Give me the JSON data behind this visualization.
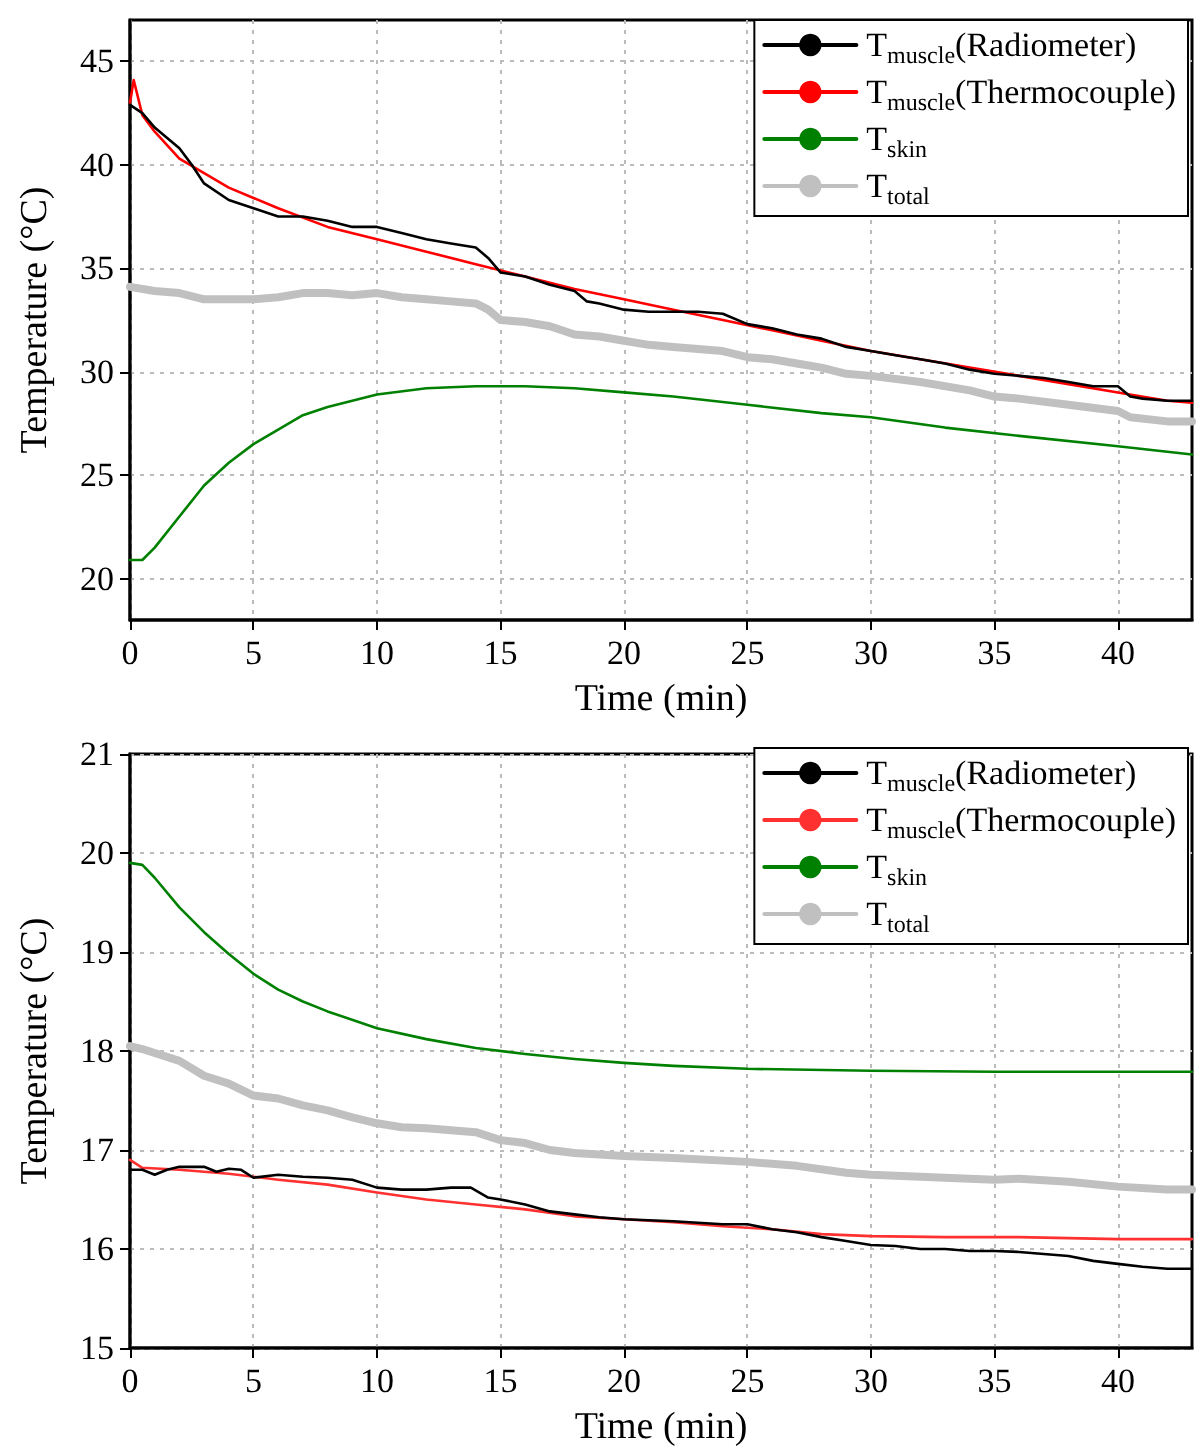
{
  "chart_data": [
    {
      "type": "line",
      "xlabel": "Time (min)",
      "ylabel": "Temperature (°C)",
      "xlim": [
        0,
        43
      ],
      "xticks": [
        0,
        5,
        10,
        15,
        20,
        25,
        30,
        35,
        40
      ],
      "ylim": [
        18,
        47
      ],
      "yticks": [
        20,
        25,
        30,
        35,
        40,
        45
      ],
      "grid": true,
      "legend": "top right",
      "marker": "none",
      "line_style": "solid",
      "series": [
        {
          "name": "T$_{muscle}$(Radiometer)",
          "color": "#000000",
          "x": [
            0,
            0.5,
            1,
            2,
            2.5,
            3,
            4,
            5,
            6,
            7,
            8,
            9,
            10,
            11,
            12,
            13,
            14,
            14.5,
            15,
            16,
            17,
            18,
            18.5,
            19,
            20,
            21,
            22,
            23,
            24,
            25,
            26,
            27,
            28,
            29,
            30,
            31,
            32,
            33,
            34,
            35,
            36,
            37,
            38,
            39,
            40,
            40.5,
            41,
            42,
            43
          ],
          "values": [
            42.9,
            42.5,
            41.8,
            40.8,
            40,
            39.1,
            38.3,
            37.9,
            37.5,
            37.5,
            37.3,
            37,
            37,
            36.7,
            36.4,
            36.2,
            36,
            35.5,
            34.8,
            34.6,
            34.2,
            33.9,
            33.4,
            33.3,
            33,
            32.9,
            32.9,
            32.9,
            32.8,
            32.3,
            32.1,
            31.8,
            31.6,
            31.2,
            31,
            30.8,
            30.6,
            30.4,
            30.1,
            29.9,
            29.8,
            29.7,
            29.5,
            29.3,
            29.3,
            28.8,
            28.7,
            28.6,
            28.6
          ]
        },
        {
          "name": "T$_{muscle}$(Thermocouple)",
          "color": "#ff0000",
          "x": [
            0,
            0.15,
            0.5,
            1,
            2,
            3,
            4,
            5,
            6,
            8,
            10,
            12,
            14,
            16,
            18,
            20,
            22,
            24,
            26,
            28,
            30,
            32,
            34,
            36,
            38,
            40,
            42,
            43
          ],
          "values": [
            43,
            44.1,
            42.4,
            41.6,
            40.3,
            39.6,
            38.9,
            38.4,
            37.9,
            37,
            36.4,
            35.8,
            35.2,
            34.6,
            34,
            33.5,
            33,
            32.5,
            32,
            31.5,
            31,
            30.6,
            30.2,
            29.8,
            29.4,
            29,
            28.6,
            28.5
          ]
        },
        {
          "name": "T$_{skin}$",
          "color": "#008000",
          "x": [
            0,
            0.5,
            1,
            2,
            3,
            4,
            5,
            6,
            7,
            8,
            10,
            12,
            14,
            16,
            18,
            20,
            22,
            25,
            28,
            30,
            33,
            36,
            40,
            43
          ],
          "values": [
            20.9,
            20.9,
            21.5,
            23,
            24.5,
            25.6,
            26.5,
            27.2,
            27.9,
            28.3,
            28.9,
            29.2,
            29.3,
            29.3,
            29.2,
            29,
            28.8,
            28.4,
            28,
            27.8,
            27.3,
            26.9,
            26.4,
            26
          ]
        },
        {
          "name": "T$_{total}$",
          "color": "#c0c0c0",
          "x": [
            0,
            1,
            2,
            3,
            4,
            5,
            6,
            7,
            8,
            9,
            10,
            11,
            12,
            13,
            14,
            14.5,
            15,
            16,
            17,
            18,
            19,
            20,
            21,
            22,
            23,
            24,
            25,
            26,
            27,
            28,
            29,
            30,
            32,
            34,
            35,
            36,
            38,
            40,
            40.5,
            42,
            43
          ],
          "values": [
            34.1,
            33.9,
            33.8,
            33.5,
            33.5,
            33.5,
            33.6,
            33.8,
            33.8,
            33.7,
            33.8,
            33.6,
            33.5,
            33.4,
            33.3,
            33,
            32.5,
            32.4,
            32.2,
            31.8,
            31.7,
            31.5,
            31.3,
            31.2,
            31.1,
            31,
            30.7,
            30.6,
            30.4,
            30.2,
            29.9,
            29.8,
            29.5,
            29.1,
            28.8,
            28.7,
            28.4,
            28.1,
            27.8,
            27.6,
            27.6
          ]
        }
      ]
    },
    {
      "type": "line",
      "xlabel": "Time (min)",
      "ylabel": "Temperature (°C)",
      "xlim": [
        0,
        43
      ],
      "xticks": [
        0,
        5,
        10,
        15,
        20,
        25,
        30,
        35,
        40
      ],
      "ylim": [
        15,
        21
      ],
      "yticks": [
        15,
        16,
        17,
        18,
        19,
        20,
        21
      ],
      "grid": true,
      "legend": "top right",
      "marker": "none",
      "line_style": "solid",
      "series": [
        {
          "name": "T$_{muscle}$(Radiometer)",
          "color": "#000000",
          "x": [
            0,
            0.5,
            1,
            1.5,
            2,
            3,
            3.5,
            4,
            4.5,
            5,
            6,
            7,
            8,
            9,
            10,
            11,
            12,
            13,
            13.8,
            14.5,
            15,
            16,
            17,
            18,
            19,
            20,
            22,
            24,
            25,
            26,
            27,
            28,
            29,
            30,
            31,
            32,
            33,
            34,
            35,
            36,
            37,
            38,
            39,
            40,
            41,
            42,
            43
          ],
          "values": [
            16.8,
            16.8,
            16.75,
            16.8,
            16.83,
            16.83,
            16.78,
            16.81,
            16.8,
            16.72,
            16.75,
            16.73,
            16.72,
            16.7,
            16.62,
            16.6,
            16.6,
            16.62,
            16.62,
            16.52,
            16.5,
            16.45,
            16.38,
            16.35,
            16.32,
            16.3,
            16.28,
            16.25,
            16.25,
            16.2,
            16.17,
            16.12,
            16.08,
            16.04,
            16.03,
            16,
            16,
            15.98,
            15.98,
            15.97,
            15.95,
            15.93,
            15.88,
            15.85,
            15.82,
            15.8,
            15.8
          ]
        },
        {
          "name": "T$_{muscle}$(Thermocouple)",
          "color": "#ff3030",
          "x": [
            0,
            0.5,
            2,
            4,
            6,
            8,
            10,
            12,
            14,
            16,
            18,
            20,
            22,
            24,
            26,
            28,
            30,
            33,
            36,
            40,
            43
          ],
          "values": [
            16.9,
            16.82,
            16.8,
            16.76,
            16.7,
            16.65,
            16.57,
            16.5,
            16.45,
            16.4,
            16.33,
            16.3,
            16.27,
            16.23,
            16.2,
            16.15,
            16.13,
            16.12,
            16.12,
            16.1,
            16.1
          ]
        },
        {
          "name": "T$_{skin}$",
          "color": "#008000",
          "x": [
            0,
            0.5,
            1,
            2,
            3,
            4,
            5,
            6,
            7,
            8,
            10,
            12,
            14,
            16,
            18,
            20,
            22,
            25,
            30,
            35,
            40,
            43
          ],
          "values": [
            19.9,
            19.88,
            19.75,
            19.45,
            19.2,
            18.98,
            18.78,
            18.62,
            18.5,
            18.4,
            18.23,
            18.12,
            18.03,
            17.97,
            17.92,
            17.88,
            17.85,
            17.82,
            17.8,
            17.79,
            17.79,
            17.79
          ]
        },
        {
          "name": "T$_{total}$",
          "color": "#c0c0c0",
          "x": [
            0,
            0.5,
            1,
            2,
            3,
            4,
            5,
            6,
            7,
            8,
            9,
            10,
            11,
            12,
            13,
            14,
            15,
            16,
            17,
            18,
            20,
            22,
            25,
            27,
            29,
            30,
            32,
            35,
            36,
            38,
            40,
            42,
            43
          ],
          "values": [
            18.05,
            18.02,
            17.98,
            17.9,
            17.75,
            17.67,
            17.55,
            17.52,
            17.45,
            17.4,
            17.33,
            17.27,
            17.23,
            17.22,
            17.2,
            17.18,
            17.1,
            17.07,
            17,
            16.97,
            16.94,
            16.92,
            16.88,
            16.84,
            16.77,
            16.75,
            16.73,
            16.7,
            16.71,
            16.68,
            16.63,
            16.6,
            16.6
          ]
        }
      ]
    }
  ]
}
